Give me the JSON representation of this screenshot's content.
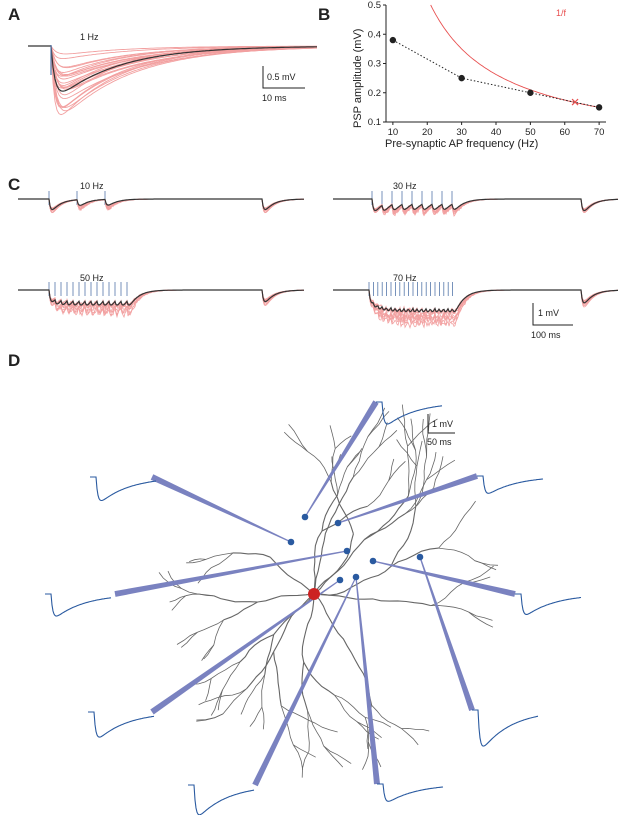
{
  "panels": {
    "A": {
      "label": "A",
      "freq_label": "1 Hz",
      "scale_y": "0.5 mV",
      "scale_x": "10 ms"
    },
    "B": {
      "label": "B"
    },
    "C": {
      "label": "C",
      "traces": [
        "10 Hz",
        "30 Hz",
        "50 Hz",
        "70 Hz"
      ],
      "scale_y": "1 mV",
      "scale_x": "100 ms"
    },
    "D": {
      "label": "D",
      "scale_y": "1 mV",
      "scale_x": "50 ms"
    }
  },
  "chart_data": {
    "type": "scatter",
    "xlabel": "Pre-synaptic AP frequency (Hz)",
    "ylabel": "PSP amplitude (mV)",
    "xlim": [
      8,
      72
    ],
    "ylim": [
      0.1,
      0.5
    ],
    "xticks": [
      10,
      20,
      30,
      40,
      50,
      60,
      70
    ],
    "yticks": [
      0.1,
      0.2,
      0.3,
      0.4,
      0.5
    ],
    "x": [
      10,
      30,
      50,
      70
    ],
    "y": [
      0.38,
      0.25,
      0.2,
      0.15
    ],
    "curve_label": "1/f",
    "cross_point": {
      "x": 63,
      "y": 0.168
    },
    "colors": {
      "points": "#222222",
      "curve": "#e85050",
      "traces": "#f2a0a0",
      "mean": "#222222",
      "stim": "#5577aa",
      "blue": "#2a5aa0",
      "bar": "#7a82c0",
      "dendrite": "#666666",
      "soma": "#cc2222"
    }
  }
}
